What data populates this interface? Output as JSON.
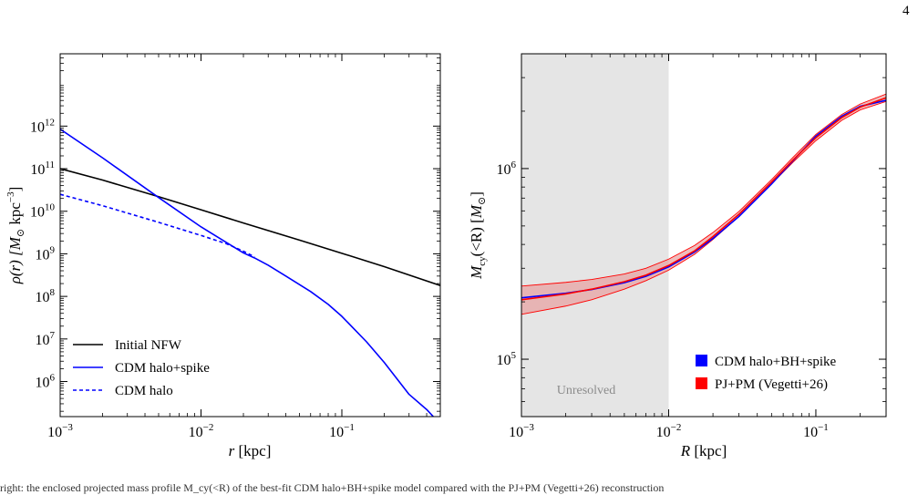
{
  "page_number": "4",
  "caption": "right: the enclosed projected mass profile M_cy(<R) of the best-fit CDM halo+BH+spike model compared with the PJ+PM (Vegetti+26) reconstruction",
  "colors": {
    "black": "#000000",
    "blue": "#0000ff",
    "red": "#ff0000",
    "red_fill": "#e8a0a0",
    "gray_band": "#e5e5e5",
    "unresolved_text": "#8c8c8c"
  },
  "chart_data": [
    {
      "type": "line",
      "xscale": "log",
      "yscale": "log",
      "xlim": [
        0.001,
        0.5
      ],
      "ylim": [
        150000,
        50000000000000
      ],
      "xlabel": {
        "var": "r",
        "unit": " [kpc]"
      },
      "ylabel": {
        "func": "ρ(r) [",
        "sym": "M",
        "sub": "⊙",
        "mid": " kpc",
        "sup": "−3",
        "end": "]"
      },
      "x_ticks": [
        {
          "value": 0.001,
          "base": "10",
          "exp": "−3"
        },
        {
          "value": 0.01,
          "base": "10",
          "exp": "−2"
        },
        {
          "value": 0.1,
          "base": "10",
          "exp": "−1"
        }
      ],
      "y_ticks": [
        {
          "value": 1000000,
          "base": "10",
          "exp": "6"
        },
        {
          "value": 10000000,
          "base": "10",
          "exp": "7"
        },
        {
          "value": 100000000,
          "base": "10",
          "exp": "8"
        },
        {
          "value": 1000000000,
          "base": "10",
          "exp": "9"
        },
        {
          "value": 10000000000,
          "base": "10",
          "exp": "10"
        },
        {
          "value": 100000000000,
          "base": "10",
          "exp": "11"
        },
        {
          "value": 1000000000000,
          "base": "10",
          "exp": "12"
        }
      ],
      "legend_position": "bottom-left",
      "series": [
        {
          "name": "Initial NFW",
          "color": "#000000",
          "dash": "solid",
          "x": [
            0.001,
            0.002,
            0.005,
            0.01,
            0.02,
            0.05,
            0.1,
            0.2,
            0.5
          ],
          "y": [
            100000000000.0,
            54000000000.0,
            22000000000.0,
            10800000000.0,
            5300000000.0,
            2100000000.0,
            1030000000.0,
            500000000.0,
            180000000.0
          ]
        },
        {
          "name": "CDM halo+spike",
          "color": "#0000ff",
          "dash": "solid",
          "x": [
            0.001,
            0.002,
            0.005,
            0.01,
            0.02,
            0.024,
            0.03,
            0.04,
            0.06,
            0.08,
            0.1,
            0.15,
            0.2,
            0.3,
            0.4,
            0.5
          ],
          "y": [
            850000000000.0,
            180000000000.0,
            21000000000.0,
            4300000000.0,
            1050000000.0,
            800000000.0,
            540000000.0,
            300000000.0,
            130000000.0,
            65000000.0,
            34000000.0,
            8500000.0,
            2800000.0,
            500000.0,
            220000.0,
            100000.0
          ]
        },
        {
          "name": "CDM halo",
          "color": "#0000ff",
          "dash": "dashed",
          "x": [
            0.001,
            0.002,
            0.005,
            0.01,
            0.015,
            0.02,
            0.024
          ],
          "y": [
            25000000000.0,
            13500000000.0,
            5500000000.0,
            2700000000.0,
            1750000000.0,
            1150000000.0,
            850000000.0
          ]
        }
      ]
    },
    {
      "type": "line",
      "xscale": "log",
      "yscale": "log",
      "xlim": [
        0.001,
        0.3
      ],
      "ylim": [
        50000,
        4000000
      ],
      "xlabel": {
        "var": "R",
        "unit": " [kpc]"
      },
      "ylabel": {
        "pre": "M",
        "presub": "cy",
        "rest": "(<R) [",
        "sym": "M",
        "sub": "⊙",
        "end": "]"
      },
      "x_ticks": [
        {
          "value": 0.001,
          "base": "10",
          "exp": "−3"
        },
        {
          "value": 0.01,
          "base": "10",
          "exp": "−2"
        },
        {
          "value": 0.1,
          "base": "10",
          "exp": "−1"
        }
      ],
      "y_ticks": [
        {
          "value": 100000,
          "base": "10",
          "exp": "5"
        },
        {
          "value": 1000000,
          "base": "10",
          "exp": "6"
        }
      ],
      "unresolved_region": {
        "x_max": 0.01,
        "label": "Unresolved"
      },
      "legend_position": "bottom-right",
      "x": [
        0.001,
        0.002,
        0.003,
        0.005,
        0.007,
        0.01,
        0.015,
        0.02,
        0.03,
        0.05,
        0.07,
        0.1,
        0.15,
        0.2,
        0.3
      ],
      "series": [
        {
          "name": "CDM halo+BH+spike",
          "color": "#0000ff",
          "y": [
            210000,
            222000,
            232000,
            252000,
            272000,
            305000,
            365000,
            430000,
            560000,
            830000,
            1100000,
            1480000,
            1880000,
            2120000,
            2280000
          ]
        },
        {
          "name": "PJ+PM (Vegetti+26)",
          "color": "#ff0000",
          "y": [
            205000,
            220000,
            233000,
            255000,
            276000,
            310000,
            370000,
            440000,
            575000,
            850000,
            1110000,
            1450000,
            1850000,
            2100000,
            2350000
          ],
          "band_lower": [
            172000,
            190000,
            205000,
            233000,
            258000,
            293000,
            355000,
            425000,
            560000,
            830000,
            1080000,
            1400000,
            1790000,
            2030000,
            2250000
          ],
          "band_upper": [
            242000,
            253000,
            262000,
            280000,
            300000,
            335000,
            395000,
            462000,
            595000,
            875000,
            1145000,
            1510000,
            1920000,
            2180000,
            2460000
          ]
        }
      ]
    }
  ]
}
